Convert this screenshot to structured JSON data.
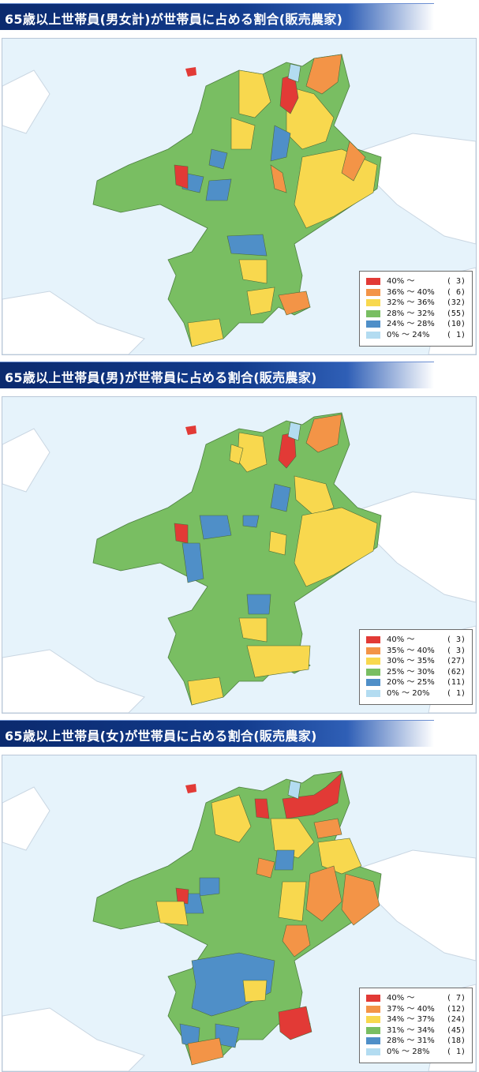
{
  "colors": {
    "c40plus": "#e23a36",
    "c_high": "#f39447",
    "c_mid": "#f8d84e",
    "c_low": "#79be62",
    "c_lower": "#4f8fc8",
    "c_lowest": "#b3dcf1",
    "sea": "#e6f3fb",
    "neighbor": "#ffffff"
  },
  "maps": [
    {
      "title": "65歳以上世帯員(男女計)が世帯員に占める割合(販売農家)",
      "legend": [
        {
          "range": "40% ～",
          "count": "( 3)",
          "color_key": "c40plus"
        },
        {
          "range": "36% ～ 40%",
          "count": "( 6)",
          "color_key": "c_high"
        },
        {
          "range": "32% ～ 36%",
          "count": "(32)",
          "color_key": "c_mid"
        },
        {
          "range": "28% ～ 32%",
          "count": "(55)",
          "color_key": "c_low"
        },
        {
          "range": "24% ～ 28%",
          "count": "(10)",
          "color_key": "c_lower"
        },
        {
          "range": "0% ～ 24%",
          "count": "( 1)",
          "color_key": "c_lowest"
        }
      ]
    },
    {
      "title": "65歳以上世帯員(男)が世帯員に占める割合(販売農家)",
      "legend": [
        {
          "range": "40% ～",
          "count": "( 3)",
          "color_key": "c40plus"
        },
        {
          "range": "35% ～ 40%",
          "count": "( 3)",
          "color_key": "c_high"
        },
        {
          "range": "30% ～ 35%",
          "count": "(27)",
          "color_key": "c_mid"
        },
        {
          "range": "25% ～ 30%",
          "count": "(62)",
          "color_key": "c_low"
        },
        {
          "range": "20% ～ 25%",
          "count": "(11)",
          "color_key": "c_lower"
        },
        {
          "range": "0% ～ 20%",
          "count": "( 1)",
          "color_key": "c_lowest"
        }
      ]
    },
    {
      "title": "65歳以上世帯員(女)が世帯員に占める割合(販売農家)",
      "legend": [
        {
          "range": "40% ～",
          "count": "( 7)",
          "color_key": "c40plus"
        },
        {
          "range": "37% ～ 40%",
          "count": "(12)",
          "color_key": "c_high"
        },
        {
          "range": "34% ～ 37%",
          "count": "(24)",
          "color_key": "c_mid"
        },
        {
          "range": "31% ～ 34%",
          "count": "(45)",
          "color_key": "c_low"
        },
        {
          "range": "28% ～ 31%",
          "count": "(18)",
          "color_key": "c_lower"
        },
        {
          "range": "0% ～ 28%",
          "count": "( 1)",
          "color_key": "c_lowest"
        }
      ]
    }
  ]
}
